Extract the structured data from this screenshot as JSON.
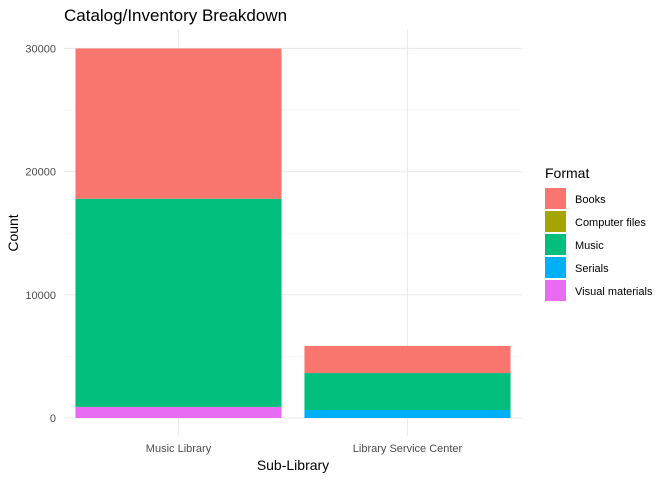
{
  "chart_data": {
    "type": "bar",
    "stacked": true,
    "title": "Catalog/Inventory Breakdown",
    "xlabel": "Sub-Library",
    "ylabel": "Count",
    "categories": [
      "Music Library",
      "Library Service Center"
    ],
    "ylim": [
      0,
      31500
    ],
    "yticks": [
      0,
      10000,
      20000,
      30000
    ],
    "ytick_labels": [
      "0",
      "10000",
      "20000",
      "30000"
    ],
    "grid": true,
    "legend": {
      "title": "Format",
      "placement": "right"
    },
    "series": [
      {
        "name": "Books",
        "color": "#F8766D",
        "values": [
          12200,
          2200
        ]
      },
      {
        "name": "Computer files",
        "color": "#A3A500",
        "values": [
          0,
          0
        ]
      },
      {
        "name": "Music",
        "color": "#00BF7D",
        "values": [
          16900,
          3000
        ]
      },
      {
        "name": "Serials",
        "color": "#00B0F6",
        "values": [
          0,
          650
        ]
      },
      {
        "name": "Visual materials",
        "color": "#E76BF3",
        "values": [
          900,
          0
        ]
      }
    ]
  }
}
